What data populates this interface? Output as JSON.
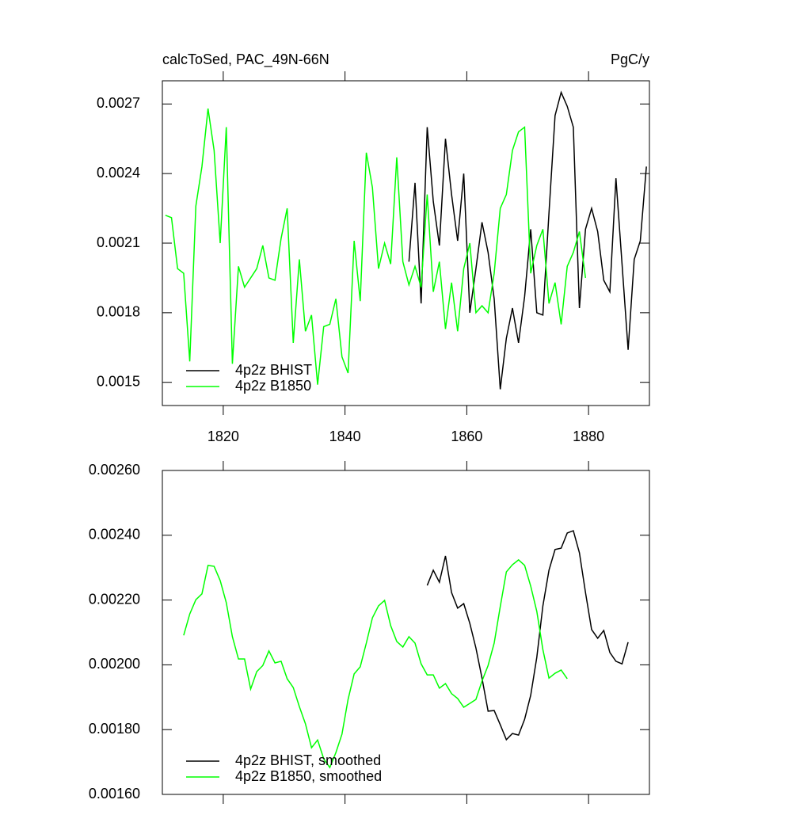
{
  "chart_data": [
    {
      "type": "line",
      "title": "calcToSed, PAC_49N-66N",
      "units": "PgC/y",
      "x": [
        1810.5,
        1811.5,
        1812.5,
        1813.5,
        1814.5,
        1815.5,
        1816.5,
        1817.5,
        1818.5,
        1819.5,
        1820.5,
        1821.5,
        1822.5,
        1823.5,
        1824.5,
        1825.5,
        1826.5,
        1827.5,
        1828.5,
        1829.5,
        1830.5,
        1831.5,
        1832.5,
        1833.5,
        1834.5,
        1835.5,
        1836.5,
        1837.5,
        1838.5,
        1839.5,
        1840.5,
        1841.5,
        1842.5,
        1843.5,
        1844.5,
        1845.5,
        1846.5,
        1847.5,
        1848.5,
        1849.5,
        1850.5,
        1851.5,
        1852.5,
        1853.5,
        1854.5,
        1855.5,
        1856.5,
        1857.5,
        1858.5,
        1859.5,
        1860.5,
        1861.5,
        1862.5,
        1863.5,
        1864.5,
        1865.5,
        1866.5,
        1867.5,
        1868.5,
        1869.5,
        1870.5,
        1871.5,
        1872.5,
        1873.5,
        1874.5,
        1875.5,
        1876.5,
        1877.5,
        1878.5,
        1879.5,
        1880.5,
        1881.5,
        1882.5,
        1883.5,
        1884.5,
        1885.5,
        1886.5,
        1887.5,
        1888.5,
        1889.5
      ],
      "series": [
        {
          "name": "4p2z BHIST",
          "color": "#000000",
          "values": [
            null,
            null,
            null,
            null,
            null,
            null,
            null,
            null,
            null,
            null,
            null,
            null,
            null,
            null,
            null,
            null,
            null,
            null,
            null,
            null,
            null,
            null,
            null,
            null,
            null,
            null,
            null,
            null,
            null,
            null,
            null,
            null,
            null,
            null,
            null,
            null,
            null,
            null,
            null,
            null,
            0.00202,
            0.00236,
            0.00184,
            0.0026,
            0.00228,
            0.00209,
            0.00255,
            0.00231,
            0.00211,
            0.0024,
            0.0018,
            0.00199,
            0.00219,
            0.00206,
            0.00186,
            0.00147,
            0.00169,
            0.00182,
            0.00167,
            0.00187,
            0.00216,
            0.0018,
            0.00179,
            0.00223,
            0.00265,
            0.00275,
            0.00269,
            0.0026,
            0.00182,
            0.00216,
            0.00225,
            0.00215,
            0.00194,
            0.00189,
            0.00238,
            0.00201,
            0.00164,
            0.00203,
            0.00211,
            0.00243
          ]
        },
        {
          "name": "4p2z B1850",
          "color": "#00ff00",
          "values": [
            0.00222,
            0.00221,
            0.00199,
            0.00197,
            0.00159,
            0.00226,
            0.00243,
            0.00268,
            0.0025,
            0.0021,
            0.0026,
            0.00158,
            0.002,
            0.00191,
            0.00195,
            0.00199,
            0.00209,
            0.00195,
            0.00194,
            0.00212,
            0.00225,
            0.00167,
            0.00203,
            0.00172,
            0.00179,
            0.00149,
            0.00174,
            0.00175,
            0.00186,
            0.00161,
            0.00154,
            0.00211,
            0.00185,
            0.00249,
            0.00234,
            0.00199,
            0.0021,
            0.00201,
            0.00247,
            0.00202,
            0.00192,
            0.002,
            0.00191,
            0.00231,
            0.00189,
            0.00202,
            0.00173,
            0.00193,
            0.00172,
            0.00199,
            0.0021,
            0.0018,
            0.00183,
            0.0018,
            0.00197,
            0.00225,
            0.00231,
            0.0025,
            0.00258,
            0.0026,
            0.00197,
            0.00209,
            0.00216,
            0.00184,
            0.00193,
            0.00175,
            0.002,
            0.00206,
            0.00215,
            0.00195,
            null,
            null,
            null,
            null,
            null,
            null,
            null,
            null,
            null,
            null
          ]
        }
      ],
      "xlim": [
        1810,
        1890
      ],
      "xticks": [
        1820,
        1840,
        1860,
        1880
      ],
      "show_xtick_labels": true,
      "ylim": [
        0.0014,
        0.0028
      ],
      "yticks": [
        0.0015,
        0.0018,
        0.0021,
        0.0024,
        0.0027
      ]
    },
    {
      "type": "line",
      "x": [
        1813.5,
        1814.5,
        1815.5,
        1816.5,
        1817.5,
        1818.5,
        1819.5,
        1820.5,
        1821.5,
        1822.5,
        1823.5,
        1824.5,
        1825.5,
        1826.5,
        1827.5,
        1828.5,
        1829.5,
        1830.5,
        1831.5,
        1832.5,
        1833.5,
        1834.5,
        1835.5,
        1836.5,
        1837.5,
        1838.5,
        1839.5,
        1840.5,
        1841.5,
        1842.5,
        1843.5,
        1844.5,
        1845.5,
        1846.5,
        1847.5,
        1848.5,
        1849.5,
        1850.5,
        1851.5,
        1852.5,
        1853.5,
        1854.5,
        1855.5,
        1856.5,
        1857.5,
        1858.5,
        1859.5,
        1860.5,
        1861.5,
        1862.5,
        1863.5,
        1864.5,
        1865.5,
        1866.5,
        1867.5,
        1868.5,
        1869.5,
        1870.5,
        1871.5,
        1872.5,
        1873.5,
        1874.5,
        1875.5,
        1876.5,
        1877.5,
        1878.5,
        1879.5,
        1880.5,
        1881.5,
        1882.5,
        1883.5,
        1884.5,
        1885.5,
        1886.5
      ],
      "series": [
        {
          "name": "4p2z BHIST, smoothed",
          "color": "#000000",
          "values": [
            null,
            null,
            null,
            null,
            null,
            null,
            null,
            null,
            null,
            null,
            null,
            null,
            null,
            null,
            null,
            null,
            null,
            null,
            null,
            null,
            null,
            null,
            null,
            null,
            null,
            null,
            null,
            null,
            null,
            null,
            null,
            null,
            null,
            null,
            null,
            null,
            null,
            null,
            null,
            null,
            0.002245,
            0.002292,
            0.002255,
            0.002336,
            0.002223,
            0.002175,
            0.002189,
            0.002128,
            0.002052,
            0.001959,
            0.001857,
            0.001859,
            0.001815,
            0.001769,
            0.001788,
            0.001783,
            0.001832,
            0.001906,
            0.002023,
            0.002182,
            0.002292,
            0.002356,
            0.00236,
            0.002407,
            0.002414,
            0.002346,
            0.002223,
            0.002109,
            0.002082,
            0.002106,
            0.002038,
            0.002011,
            0.002003,
            0.00207
          ]
        },
        {
          "name": "4p2z B1850, smoothed",
          "color": "#00ff00",
          "values": [
            0.002091,
            0.002157,
            0.002201,
            0.002219,
            0.002307,
            0.002304,
            0.00226,
            0.002192,
            0.002087,
            0.002018,
            0.002018,
            0.001925,
            0.001979,
            0.001998,
            0.002043,
            0.002006,
            0.002011,
            0.001957,
            0.00193,
            0.001871,
            0.001818,
            0.001744,
            0.001768,
            0.00171,
            0.001683,
            0.001729,
            0.001786,
            0.001893,
            0.001972,
            0.001994,
            0.002067,
            0.002145,
            0.002182,
            0.002199,
            0.002121,
            0.002072,
            0.002055,
            0.002087,
            0.002067,
            0.002003,
            0.001969,
            0.001969,
            0.001928,
            0.001942,
            0.001911,
            0.001896,
            0.001869,
            0.001881,
            0.001893,
            0.00195,
            0.001998,
            0.002067,
            0.00218,
            0.002287,
            0.002309,
            0.002324,
            0.002307,
            0.002243,
            0.002165,
            0.002047,
            0.001959,
            0.001974,
            0.001984,
            0.001957,
            null,
            null,
            null,
            null,
            null,
            null,
            null,
            null,
            null,
            null
          ]
        }
      ],
      "xlim": [
        1810,
        1890
      ],
      "xticks": [
        1820,
        1840,
        1860,
        1880
      ],
      "show_xtick_labels": false,
      "ylim": [
        0.0016,
        0.0026
      ],
      "yticks": [
        {
          "value": 0.0016,
          "label": "0.00160"
        },
        {
          "value": 0.0018,
          "label": "0.00180"
        },
        {
          "value": 0.002,
          "label": "0.00200"
        },
        {
          "value": 0.0022,
          "label": "0.00220"
        },
        {
          "value": 0.0024,
          "label": "0.00240"
        },
        {
          "value": 0.0026,
          "label": "0.00260"
        }
      ]
    }
  ]
}
